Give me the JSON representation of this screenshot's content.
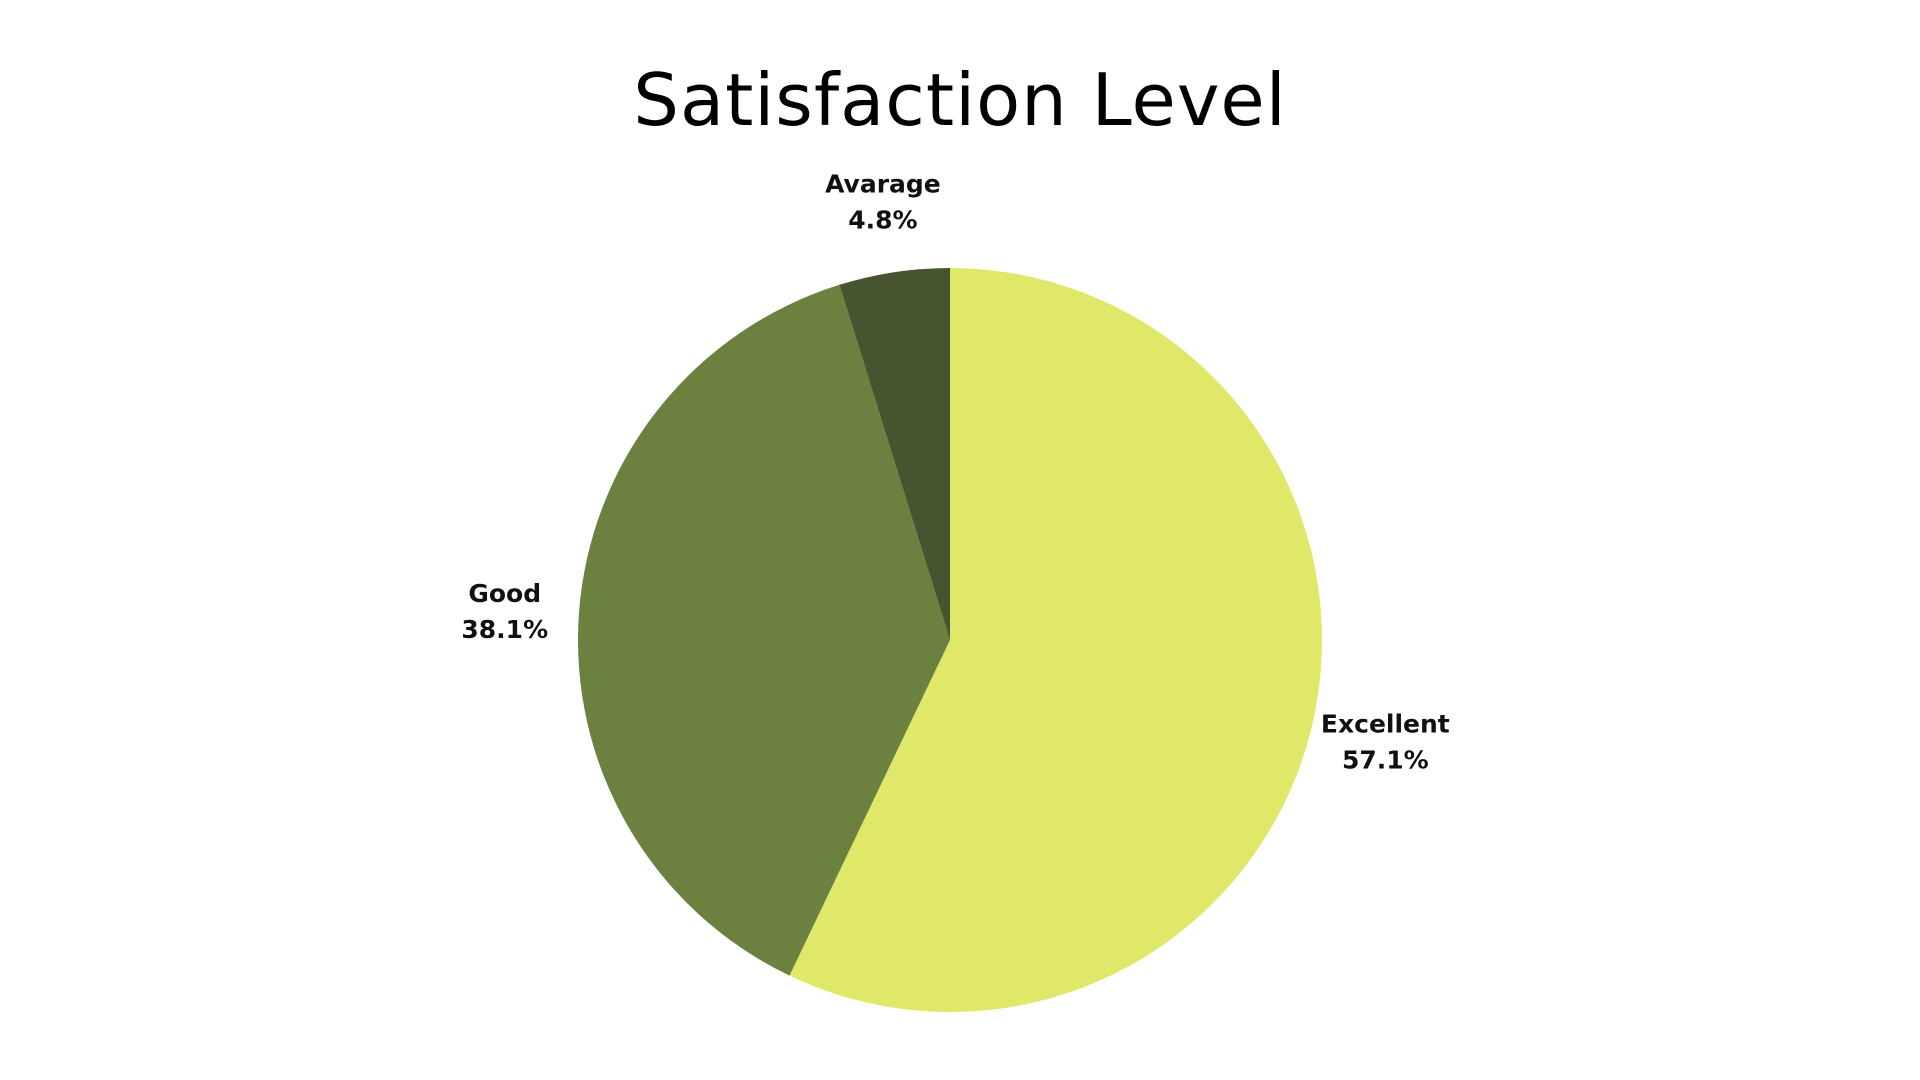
{
  "chart_data": {
    "type": "pie",
    "title": "Satisfaction Level",
    "start_angle_deg": 0,
    "direction": "clockwise",
    "slices": [
      {
        "name": "Excellent",
        "value": 57.1,
        "label": "57.1%",
        "color": "#dfe868"
      },
      {
        "name": "Good",
        "value": 38.1,
        "label": "38.1%",
        "color": "#6c803f"
      },
      {
        "name": "Avarage",
        "value": 4.8,
        "label": "4.8%",
        "color": "#465530"
      }
    ]
  }
}
